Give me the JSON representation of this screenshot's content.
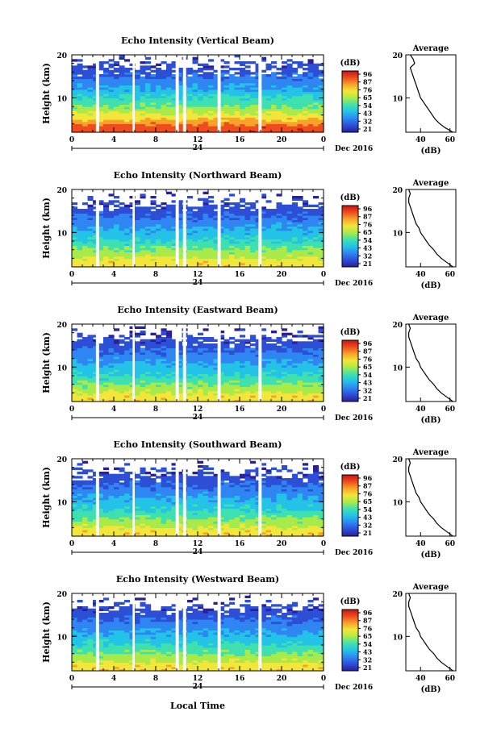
{
  "figure": {
    "xlabel": "Local Time",
    "date_label": "Dec 2016",
    "day_label": "24",
    "cbar_unit": "(dB)",
    "avg_title": "Average",
    "avg_xlabel": "(dB)"
  },
  "chart_data": [
    {
      "type": "heatmap",
      "title": "Echo Intensity (Vertical Beam)",
      "xlabel": "Local Time",
      "ylabel": "Height (km)",
      "x_ticks": [
        "0",
        "4",
        "8",
        "12",
        "16",
        "20",
        "0"
      ],
      "xlim": [
        0,
        24
      ],
      "y_ticks": [
        "10",
        "20"
      ],
      "ylim": [
        2,
        20
      ],
      "colorbar": {
        "label": "(dB)",
        "ticks": [
          "96",
          "87",
          "76",
          "65",
          "54",
          "43",
          "32",
          "21"
        ],
        "range": [
          21,
          96
        ]
      },
      "data_gaps_hours": [
        [
          2.3,
          2.6
        ],
        [
          5.8,
          6.0
        ],
        [
          9.9,
          10.2
        ],
        [
          10.6,
          10.9
        ],
        [
          13.9,
          14.2
        ],
        [
          17.8,
          18.1
        ]
      ],
      "heights_km": [
        3,
        4,
        6,
        8,
        10,
        12,
        14,
        16
      ],
      "intensity_db": [
        88,
        80,
        68,
        58,
        50,
        42,
        36,
        30
      ],
      "average": {
        "title": "Average",
        "xlabel": "(dB)",
        "x_ticks": [
          "40",
          "60"
        ],
        "xlim": [
          30,
          64
        ],
        "y_ticks": [
          "10",
          "20"
        ],
        "profile": [
          [
            2,
            62
          ],
          [
            3,
            57
          ],
          [
            4,
            53
          ],
          [
            5,
            50
          ],
          [
            6,
            48
          ],
          [
            7,
            46
          ],
          [
            8,
            44
          ],
          [
            9,
            42
          ],
          [
            10,
            40
          ],
          [
            11,
            39
          ],
          [
            12,
            38
          ],
          [
            13,
            37
          ],
          [
            14,
            36
          ],
          [
            15,
            35
          ],
          [
            16,
            34
          ],
          [
            17,
            33
          ],
          [
            18,
            36
          ],
          [
            19,
            35
          ],
          [
            20,
            33
          ]
        ]
      }
    },
    {
      "type": "heatmap",
      "title": "Echo Intensity (Northward Beam)",
      "xlabel": "Local Time",
      "ylabel": "Height (km)",
      "x_ticks": [
        "0",
        "4",
        "8",
        "12",
        "16",
        "20",
        "0"
      ],
      "xlim": [
        0,
        24
      ],
      "y_ticks": [
        "10",
        "20"
      ],
      "ylim": [
        2,
        20
      ],
      "colorbar": {
        "label": "(dB)",
        "ticks": [
          "96",
          "87",
          "76",
          "65",
          "54",
          "43",
          "32",
          "21"
        ],
        "range": [
          21,
          96
        ]
      },
      "data_gaps_hours": [
        [
          2.3,
          2.6
        ],
        [
          5.8,
          6.0
        ],
        [
          9.9,
          10.2
        ],
        [
          10.6,
          10.9
        ],
        [
          13.9,
          14.2
        ],
        [
          17.8,
          18.1
        ]
      ],
      "heights_km": [
        3,
        4,
        6,
        8,
        10,
        12,
        14,
        16
      ],
      "intensity_db": [
        72,
        66,
        58,
        50,
        44,
        38,
        32,
        27
      ],
      "average": {
        "title": "Average",
        "xlabel": "(dB)",
        "x_ticks": [
          "40",
          "60"
        ],
        "xlim": [
          30,
          64
        ],
        "y_ticks": [
          "10",
          "20"
        ],
        "profile": [
          [
            2,
            62
          ],
          [
            3,
            58
          ],
          [
            4,
            54
          ],
          [
            5,
            51
          ],
          [
            6,
            49
          ],
          [
            7,
            46
          ],
          [
            8,
            44
          ],
          [
            9,
            42
          ],
          [
            10,
            40
          ],
          [
            11,
            39
          ],
          [
            12,
            37
          ],
          [
            13,
            36
          ],
          [
            14,
            35
          ],
          [
            15,
            34
          ],
          [
            16,
            33
          ],
          [
            17,
            32
          ],
          [
            18,
            32
          ],
          [
            19,
            33
          ],
          [
            20,
            32
          ]
        ]
      }
    },
    {
      "type": "heatmap",
      "title": "Echo Intensity (Eastward Beam)",
      "xlabel": "Local Time",
      "ylabel": "Height (km)",
      "x_ticks": [
        "0",
        "4",
        "8",
        "12",
        "16",
        "20",
        "0"
      ],
      "xlim": [
        0,
        24
      ],
      "y_ticks": [
        "10",
        "20"
      ],
      "ylim": [
        2,
        20
      ],
      "colorbar": {
        "label": "(dB)",
        "ticks": [
          "96",
          "87",
          "76",
          "65",
          "54",
          "43",
          "32",
          "21"
        ],
        "range": [
          21,
          96
        ]
      },
      "data_gaps_hours": [
        [
          2.3,
          2.6
        ],
        [
          5.8,
          6.0
        ],
        [
          9.9,
          10.2
        ],
        [
          10.6,
          10.9
        ],
        [
          13.9,
          14.2
        ],
        [
          17.8,
          18.1
        ]
      ],
      "heights_km": [
        3,
        4,
        6,
        8,
        10,
        12,
        14,
        16
      ],
      "intensity_db": [
        72,
        66,
        58,
        50,
        44,
        38,
        32,
        27
      ],
      "average": {
        "title": "Average",
        "xlabel": "(dB)",
        "x_ticks": [
          "40",
          "60"
        ],
        "xlim": [
          30,
          64
        ],
        "y_ticks": [
          "10",
          "20"
        ],
        "profile": [
          [
            2,
            62
          ],
          [
            3,
            58
          ],
          [
            4,
            54
          ],
          [
            5,
            51
          ],
          [
            6,
            49
          ],
          [
            7,
            46
          ],
          [
            8,
            44
          ],
          [
            9,
            42
          ],
          [
            10,
            40
          ],
          [
            11,
            39
          ],
          [
            12,
            37
          ],
          [
            13,
            36
          ],
          [
            14,
            35
          ],
          [
            15,
            34
          ],
          [
            16,
            33
          ],
          [
            17,
            32
          ],
          [
            18,
            32
          ],
          [
            19,
            33
          ],
          [
            20,
            32
          ]
        ]
      }
    },
    {
      "type": "heatmap",
      "title": "Echo Intensity (Southward Beam)",
      "xlabel": "Local Time",
      "ylabel": "Height (km)",
      "x_ticks": [
        "0",
        "4",
        "8",
        "12",
        "16",
        "20",
        "0"
      ],
      "xlim": [
        0,
        24
      ],
      "y_ticks": [
        "10",
        "20"
      ],
      "ylim": [
        2,
        20
      ],
      "colorbar": {
        "label": "(dB)",
        "ticks": [
          "96",
          "87",
          "76",
          "65",
          "54",
          "43",
          "32",
          "21"
        ],
        "range": [
          21,
          96
        ]
      },
      "data_gaps_hours": [
        [
          2.3,
          2.6
        ],
        [
          5.8,
          6.0
        ],
        [
          9.9,
          10.2
        ],
        [
          10.6,
          10.9
        ],
        [
          13.9,
          14.2
        ],
        [
          17.8,
          18.1
        ]
      ],
      "heights_km": [
        3,
        4,
        6,
        8,
        10,
        12,
        14,
        16
      ],
      "intensity_db": [
        72,
        66,
        58,
        50,
        44,
        38,
        32,
        27
      ],
      "average": {
        "title": "Average",
        "xlabel": "(dB)",
        "x_ticks": [
          "40",
          "60"
        ],
        "xlim": [
          30,
          64
        ],
        "y_ticks": [
          "10",
          "20"
        ],
        "profile": [
          [
            2,
            62
          ],
          [
            3,
            58
          ],
          [
            4,
            54
          ],
          [
            5,
            51
          ],
          [
            6,
            49
          ],
          [
            7,
            46
          ],
          [
            8,
            44
          ],
          [
            9,
            42
          ],
          [
            10,
            40
          ],
          [
            11,
            39
          ],
          [
            12,
            37
          ],
          [
            13,
            36
          ],
          [
            14,
            35
          ],
          [
            15,
            34
          ],
          [
            16,
            33
          ],
          [
            17,
            32
          ],
          [
            18,
            32
          ],
          [
            19,
            33
          ],
          [
            20,
            32
          ]
        ]
      }
    },
    {
      "type": "heatmap",
      "title": "Echo Intensity (Westward Beam)",
      "xlabel": "Local Time",
      "ylabel": "Height (km)",
      "x_ticks": [
        "0",
        "4",
        "8",
        "12",
        "16",
        "20",
        "0"
      ],
      "xlim": [
        0,
        24
      ],
      "y_ticks": [
        "10",
        "20"
      ],
      "ylim": [
        2,
        20
      ],
      "colorbar": {
        "label": "(dB)",
        "ticks": [
          "96",
          "87",
          "76",
          "65",
          "54",
          "43",
          "32",
          "21"
        ],
        "range": [
          21,
          96
        ]
      },
      "data_gaps_hours": [
        [
          2.3,
          2.6
        ],
        [
          5.8,
          6.0
        ],
        [
          9.9,
          10.2
        ],
        [
          10.6,
          10.9
        ],
        [
          13.9,
          14.2
        ],
        [
          17.8,
          18.1
        ]
      ],
      "heights_km": [
        3,
        4,
        6,
        8,
        10,
        12,
        14,
        16
      ],
      "intensity_db": [
        72,
        66,
        58,
        50,
        44,
        38,
        32,
        27
      ],
      "average": {
        "title": "Average",
        "xlabel": "(dB)",
        "x_ticks": [
          "40",
          "60"
        ],
        "xlim": [
          30,
          64
        ],
        "y_ticks": [
          "10",
          "20"
        ],
        "profile": [
          [
            2,
            62
          ],
          [
            3,
            58
          ],
          [
            4,
            54
          ],
          [
            5,
            51
          ],
          [
            6,
            49
          ],
          [
            7,
            46
          ],
          [
            8,
            44
          ],
          [
            9,
            42
          ],
          [
            10,
            40
          ],
          [
            11,
            39
          ],
          [
            12,
            37
          ],
          [
            13,
            36
          ],
          [
            14,
            35
          ],
          [
            15,
            34
          ],
          [
            16,
            33
          ],
          [
            17,
            32
          ],
          [
            18,
            32
          ],
          [
            19,
            33
          ],
          [
            20,
            32
          ]
        ]
      }
    }
  ],
  "colormap": [
    "#2a1f9c",
    "#2d4fd6",
    "#2f86f2",
    "#22c3e6",
    "#3fe0b0",
    "#a8ea4a",
    "#f2e63a",
    "#f7a329",
    "#ee4d1e",
    "#c51414"
  ]
}
